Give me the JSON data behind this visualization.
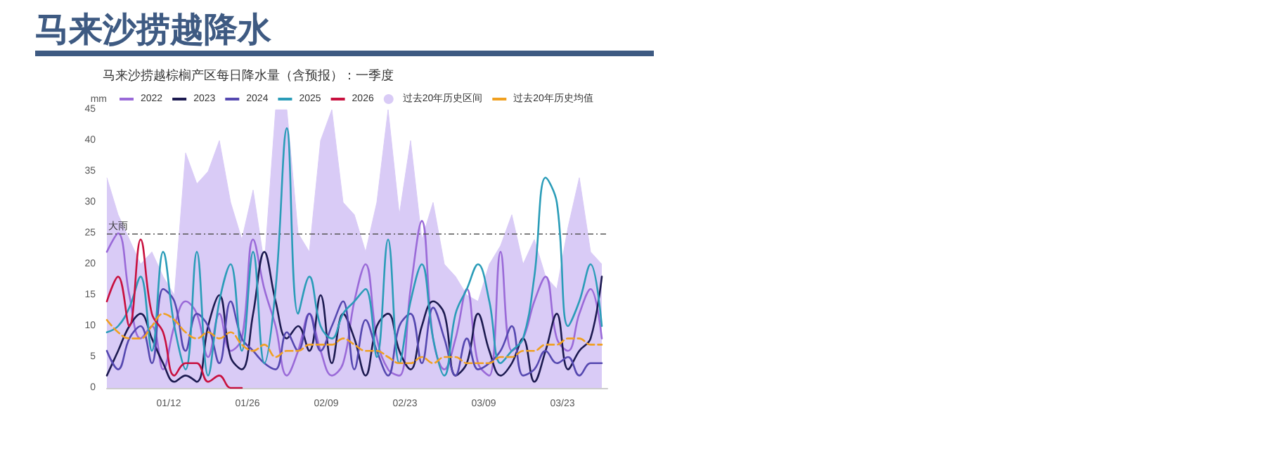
{
  "chart_data": {
    "type": "line",
    "title": "马来沙捞越降水",
    "subtitle": "马来沙捞越棕榈产区每日降水量（含预报）：一季度",
    "ylabel": "mm",
    "x": [
      "--01-01",
      "--01-03",
      "--01-05",
      "--01-07",
      "--01-09",
      "--01-11",
      "--01-13",
      "--01-15",
      "--01-17",
      "--01-19",
      "--01-21",
      "--01-23",
      "--01-25",
      "--01-27",
      "--01-29",
      "--01-31",
      "--02-02",
      "--02-04",
      "--02-06",
      "--02-08",
      "--02-10",
      "--02-12",
      "--02-14",
      "--02-16",
      "--02-18",
      "--02-20",
      "--02-22",
      "--02-24",
      "--02-26",
      "--02-28",
      "--03-02",
      "--03-04",
      "--03-06",
      "--03-08",
      "--03-10",
      "--03-12",
      "--03-14",
      "--03-16",
      "--03-18",
      "--03-20",
      "--03-22",
      "--03-24",
      "--03-26",
      "--03-28",
      "--03-30"
    ],
    "xlim": [
      "--01-01",
      "--03-31"
    ],
    "xticks": [
      {
        "value": "--01-12",
        "label": "01/12"
      },
      {
        "value": "--01-26",
        "label": "01/26"
      },
      {
        "value": "--02-09",
        "label": "02/09"
      },
      {
        "value": "--02-23",
        "label": "02/23"
      },
      {
        "value": "--03-09",
        "label": "03/09"
      },
      {
        "value": "--03-23",
        "label": "03/23"
      }
    ],
    "ylim": [
      0,
      45
    ],
    "yticks": [
      0,
      5,
      10,
      15,
      20,
      25,
      30,
      35,
      40,
      45
    ],
    "grid": false,
    "legend": "top left",
    "ref_lines": [
      {
        "axis": "y",
        "value": 25,
        "label": "大雨",
        "color": "#555555",
        "line_style": "dashed"
      }
    ],
    "series": [
      {
        "name": "2022",
        "color": "#9a6ad8",
        "values": [
          22,
          25,
          15,
          8,
          10,
          3,
          10,
          14,
          12,
          5,
          12,
          6,
          8,
          24,
          16,
          10,
          2,
          6,
          12,
          6,
          2,
          4,
          14,
          20,
          8,
          3,
          2,
          16,
          27,
          8,
          3,
          8,
          16,
          4,
          2,
          22,
          6,
          8,
          14,
          18,
          8,
          6,
          12,
          16,
          8
        ]
      },
      {
        "name": "2023",
        "color": "#1c1a50",
        "values": [
          2,
          6,
          10,
          12,
          8,
          4,
          1,
          2,
          1,
          10,
          15,
          5,
          3,
          12,
          22,
          14,
          8,
          10,
          6,
          15,
          4,
          12,
          8,
          2,
          10,
          12,
          6,
          3,
          10,
          14,
          12,
          2,
          4,
          12,
          6,
          2,
          4,
          8,
          1,
          6,
          12,
          3,
          6,
          8,
          18
        ]
      },
      {
        "name": "2024",
        "color": "#5548b0",
        "values": [
          6,
          3,
          8,
          10,
          4,
          16,
          14,
          6,
          12,
          10,
          4,
          14,
          8,
          6,
          4,
          3,
          9,
          6,
          12,
          6,
          10,
          14,
          3,
          11,
          6,
          2,
          10,
          12,
          4,
          13,
          8,
          2,
          8,
          3,
          4,
          6,
          10,
          2,
          3,
          6,
          4,
          5,
          2,
          4,
          4
        ]
      },
      {
        "name": "2025",
        "color": "#2a9cb8",
        "values": [
          9,
          10,
          13,
          18,
          6,
          22,
          10,
          3,
          22,
          2,
          14,
          20,
          6,
          22,
          4,
          16,
          42,
          12,
          18,
          10,
          8,
          12,
          14,
          16,
          5,
          24,
          4,
          14,
          20,
          8,
          2,
          12,
          16,
          20,
          14,
          4,
          6,
          8,
          18,
          34,
          30,
          10,
          14,
          20,
          10
        ]
      },
      {
        "name": "2026",
        "color": "#c8103e",
        "values": [
          14,
          18,
          10,
          24,
          12,
          9,
          2,
          4,
          4,
          1,
          2,
          0,
          0,
          null,
          null,
          null,
          null,
          null,
          null,
          null,
          null,
          null,
          null,
          null,
          null,
          null,
          null,
          null,
          null,
          null,
          null,
          null,
          null,
          null,
          null,
          null,
          null,
          null,
          null,
          null,
          null,
          null,
          null,
          null,
          null
        ]
      },
      {
        "name": "过去20年历史区间",
        "type": "area",
        "color": "#d9cbf6",
        "values": [
          34,
          28,
          24,
          20,
          22,
          18,
          15,
          38,
          33,
          35,
          40,
          30,
          24,
          32,
          20,
          45,
          45,
          25,
          22,
          40,
          45,
          30,
          28,
          22,
          30,
          45,
          28,
          40,
          24,
          30,
          20,
          18,
          15,
          14,
          20,
          23,
          28,
          20,
          24,
          18,
          16,
          26,
          34,
          22,
          20
        ]
      },
      {
        "name": "过去20年历史均值",
        "color": "#f0a020",
        "line_style": "dashed",
        "values": [
          11,
          9,
          8,
          8,
          10,
          12,
          11,
          9,
          8,
          9,
          8,
          9,
          7,
          6,
          7,
          5,
          6,
          6,
          7,
          7,
          7,
          8,
          7,
          6,
          6,
          5,
          4,
          4,
          5,
          4,
          5,
          5,
          4,
          4,
          4,
          5,
          5,
          6,
          6,
          7,
          7,
          8,
          8,
          7,
          7
        ]
      }
    ]
  }
}
